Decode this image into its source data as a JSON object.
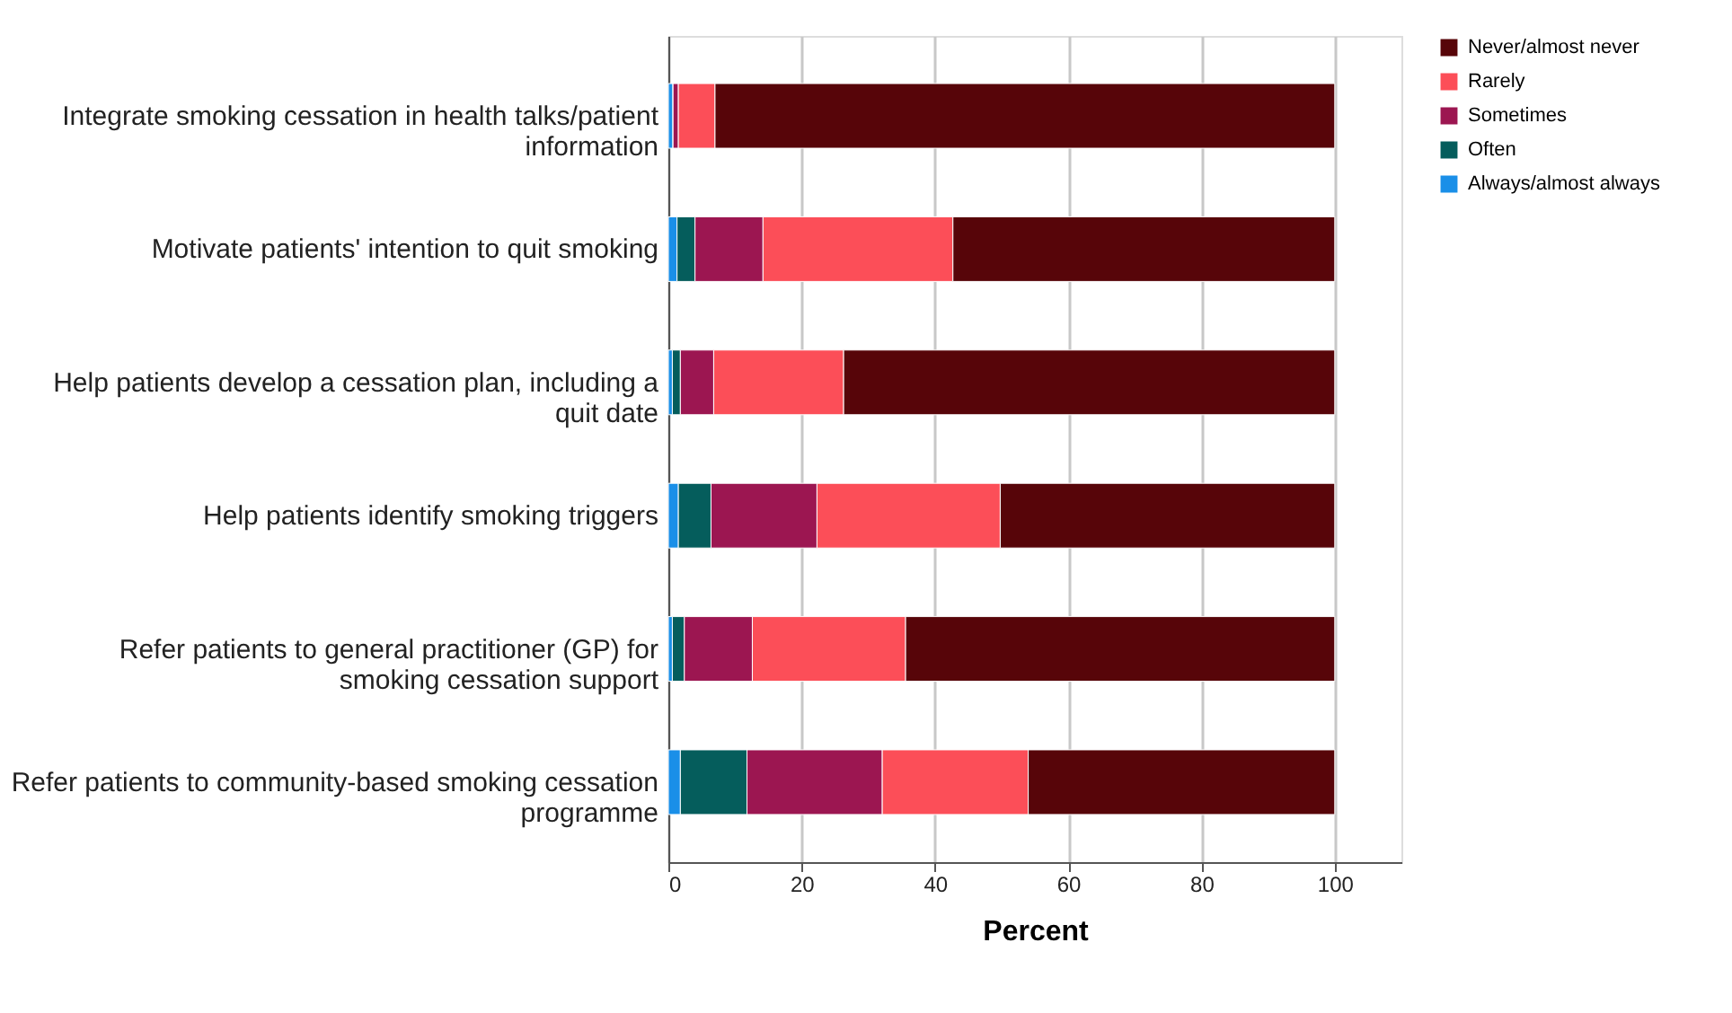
{
  "chart_data": {
    "type": "bar",
    "orientation": "horizontal",
    "stacked": true,
    "xlabel": "Percent",
    "categories": [
      "Integrate smoking cessation in health talks/patient information",
      "Motivate patients' intention to quit smoking",
      "Help patients develop a cessation plan, including a quit date",
      "Help patients identify smoking triggers",
      "Refer patients to general practitioner (GP) for smoking cessation support",
      "Refer patients to community-based smoking cessation programme"
    ],
    "series": [
      {
        "name": "Always/almost always",
        "color": "#1a8fe8",
        "values": [
          0.7,
          1.3,
          0.6,
          1.5,
          0.6,
          1.8
        ]
      },
      {
        "name": "Often",
        "color": "#055d5c",
        "values": [
          0,
          2.7,
          1.2,
          4.9,
          1.8,
          10.0
        ]
      },
      {
        "name": "Sometimes",
        "color": "#9c1651",
        "values": [
          0.8,
          10.2,
          5.0,
          15.9,
          10.2,
          20.3
        ]
      },
      {
        "name": "Rarely",
        "color": "#fc4e58",
        "values": [
          5.5,
          28.5,
          19.5,
          27.5,
          23.0,
          21.9
        ]
      },
      {
        "name": "Never/almost never",
        "color": "#570509",
        "values": [
          93.0,
          57.3,
          73.7,
          50.2,
          64.4,
          46.0
        ]
      }
    ],
    "xlim": [
      0,
      110
    ],
    "xticks": [
      0,
      20,
      40,
      60,
      80,
      100
    ],
    "grid": "x",
    "legend": "top right"
  }
}
